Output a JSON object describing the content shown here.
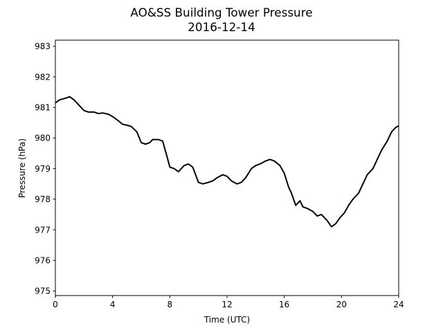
{
  "chart_data": {
    "type": "line",
    "title": "AO&SS Building Tower Pressure",
    "subtitle": "2016-12-14",
    "xlabel": "Time (UTC)",
    "ylabel": "Pressure (hPa)",
    "xlim": [
      0,
      24
    ],
    "ylim": [
      974.85,
      983.2
    ],
    "xticks": [
      0,
      4,
      8,
      12,
      16,
      20,
      24
    ],
    "yticks": [
      975,
      976,
      977,
      978,
      979,
      980,
      981,
      982,
      983
    ],
    "grid": false,
    "legend": "none",
    "line_color": "#000000",
    "series": [
      {
        "x": [
          0,
          0.3,
          0.7,
          1.0,
          1.3,
          1.7,
          2.0,
          2.3,
          2.7,
          3.0,
          3.3,
          3.7,
          4.0,
          4.3,
          4.7,
          5.0,
          5.3,
          5.7,
          6.0,
          6.3,
          6.6,
          6.8,
          7.2,
          7.5,
          7.8,
          8.0,
          8.3,
          8.6,
          9.0,
          9.3,
          9.6,
          10.0,
          10.3,
          10.7,
          11.0,
          11.3,
          11.7,
          12.0,
          12.3,
          12.7,
          13.0,
          13.3,
          13.7,
          14.0,
          14.3,
          14.7,
          15.0,
          15.3,
          15.7,
          16.0,
          16.3,
          16.5,
          16.8,
          17.1,
          17.3,
          17.6,
          18.0,
          18.3,
          18.6,
          19.0,
          19.3,
          19.6,
          19.9,
          20.2,
          20.5,
          20.8,
          21.2,
          21.5,
          21.8,
          22.2,
          22.5,
          22.8,
          23.2,
          23.5,
          23.8,
          24.0
        ],
        "y": [
          981.15,
          981.25,
          981.3,
          981.35,
          981.25,
          981.05,
          980.9,
          980.85,
          980.85,
          980.8,
          980.82,
          980.78,
          980.7,
          980.6,
          980.45,
          980.42,
          980.38,
          980.2,
          979.85,
          979.8,
          979.85,
          979.95,
          979.95,
          979.9,
          979.4,
          979.05,
          979.0,
          978.9,
          979.1,
          979.15,
          979.05,
          978.55,
          978.5,
          978.55,
          978.6,
          978.7,
          978.8,
          978.75,
          978.6,
          978.5,
          978.55,
          978.7,
          979.0,
          979.1,
          979.15,
          979.25,
          979.3,
          979.25,
          979.1,
          978.85,
          978.4,
          978.2,
          977.8,
          977.95,
          977.75,
          977.7,
          977.6,
          977.45,
          977.5,
          977.3,
          977.1,
          977.2,
          977.4,
          977.55,
          977.8,
          978.0,
          978.2,
          978.5,
          978.8,
          979.0,
          979.3,
          979.6,
          979.9,
          980.2,
          980.35,
          980.4
        ]
      }
    ]
  }
}
